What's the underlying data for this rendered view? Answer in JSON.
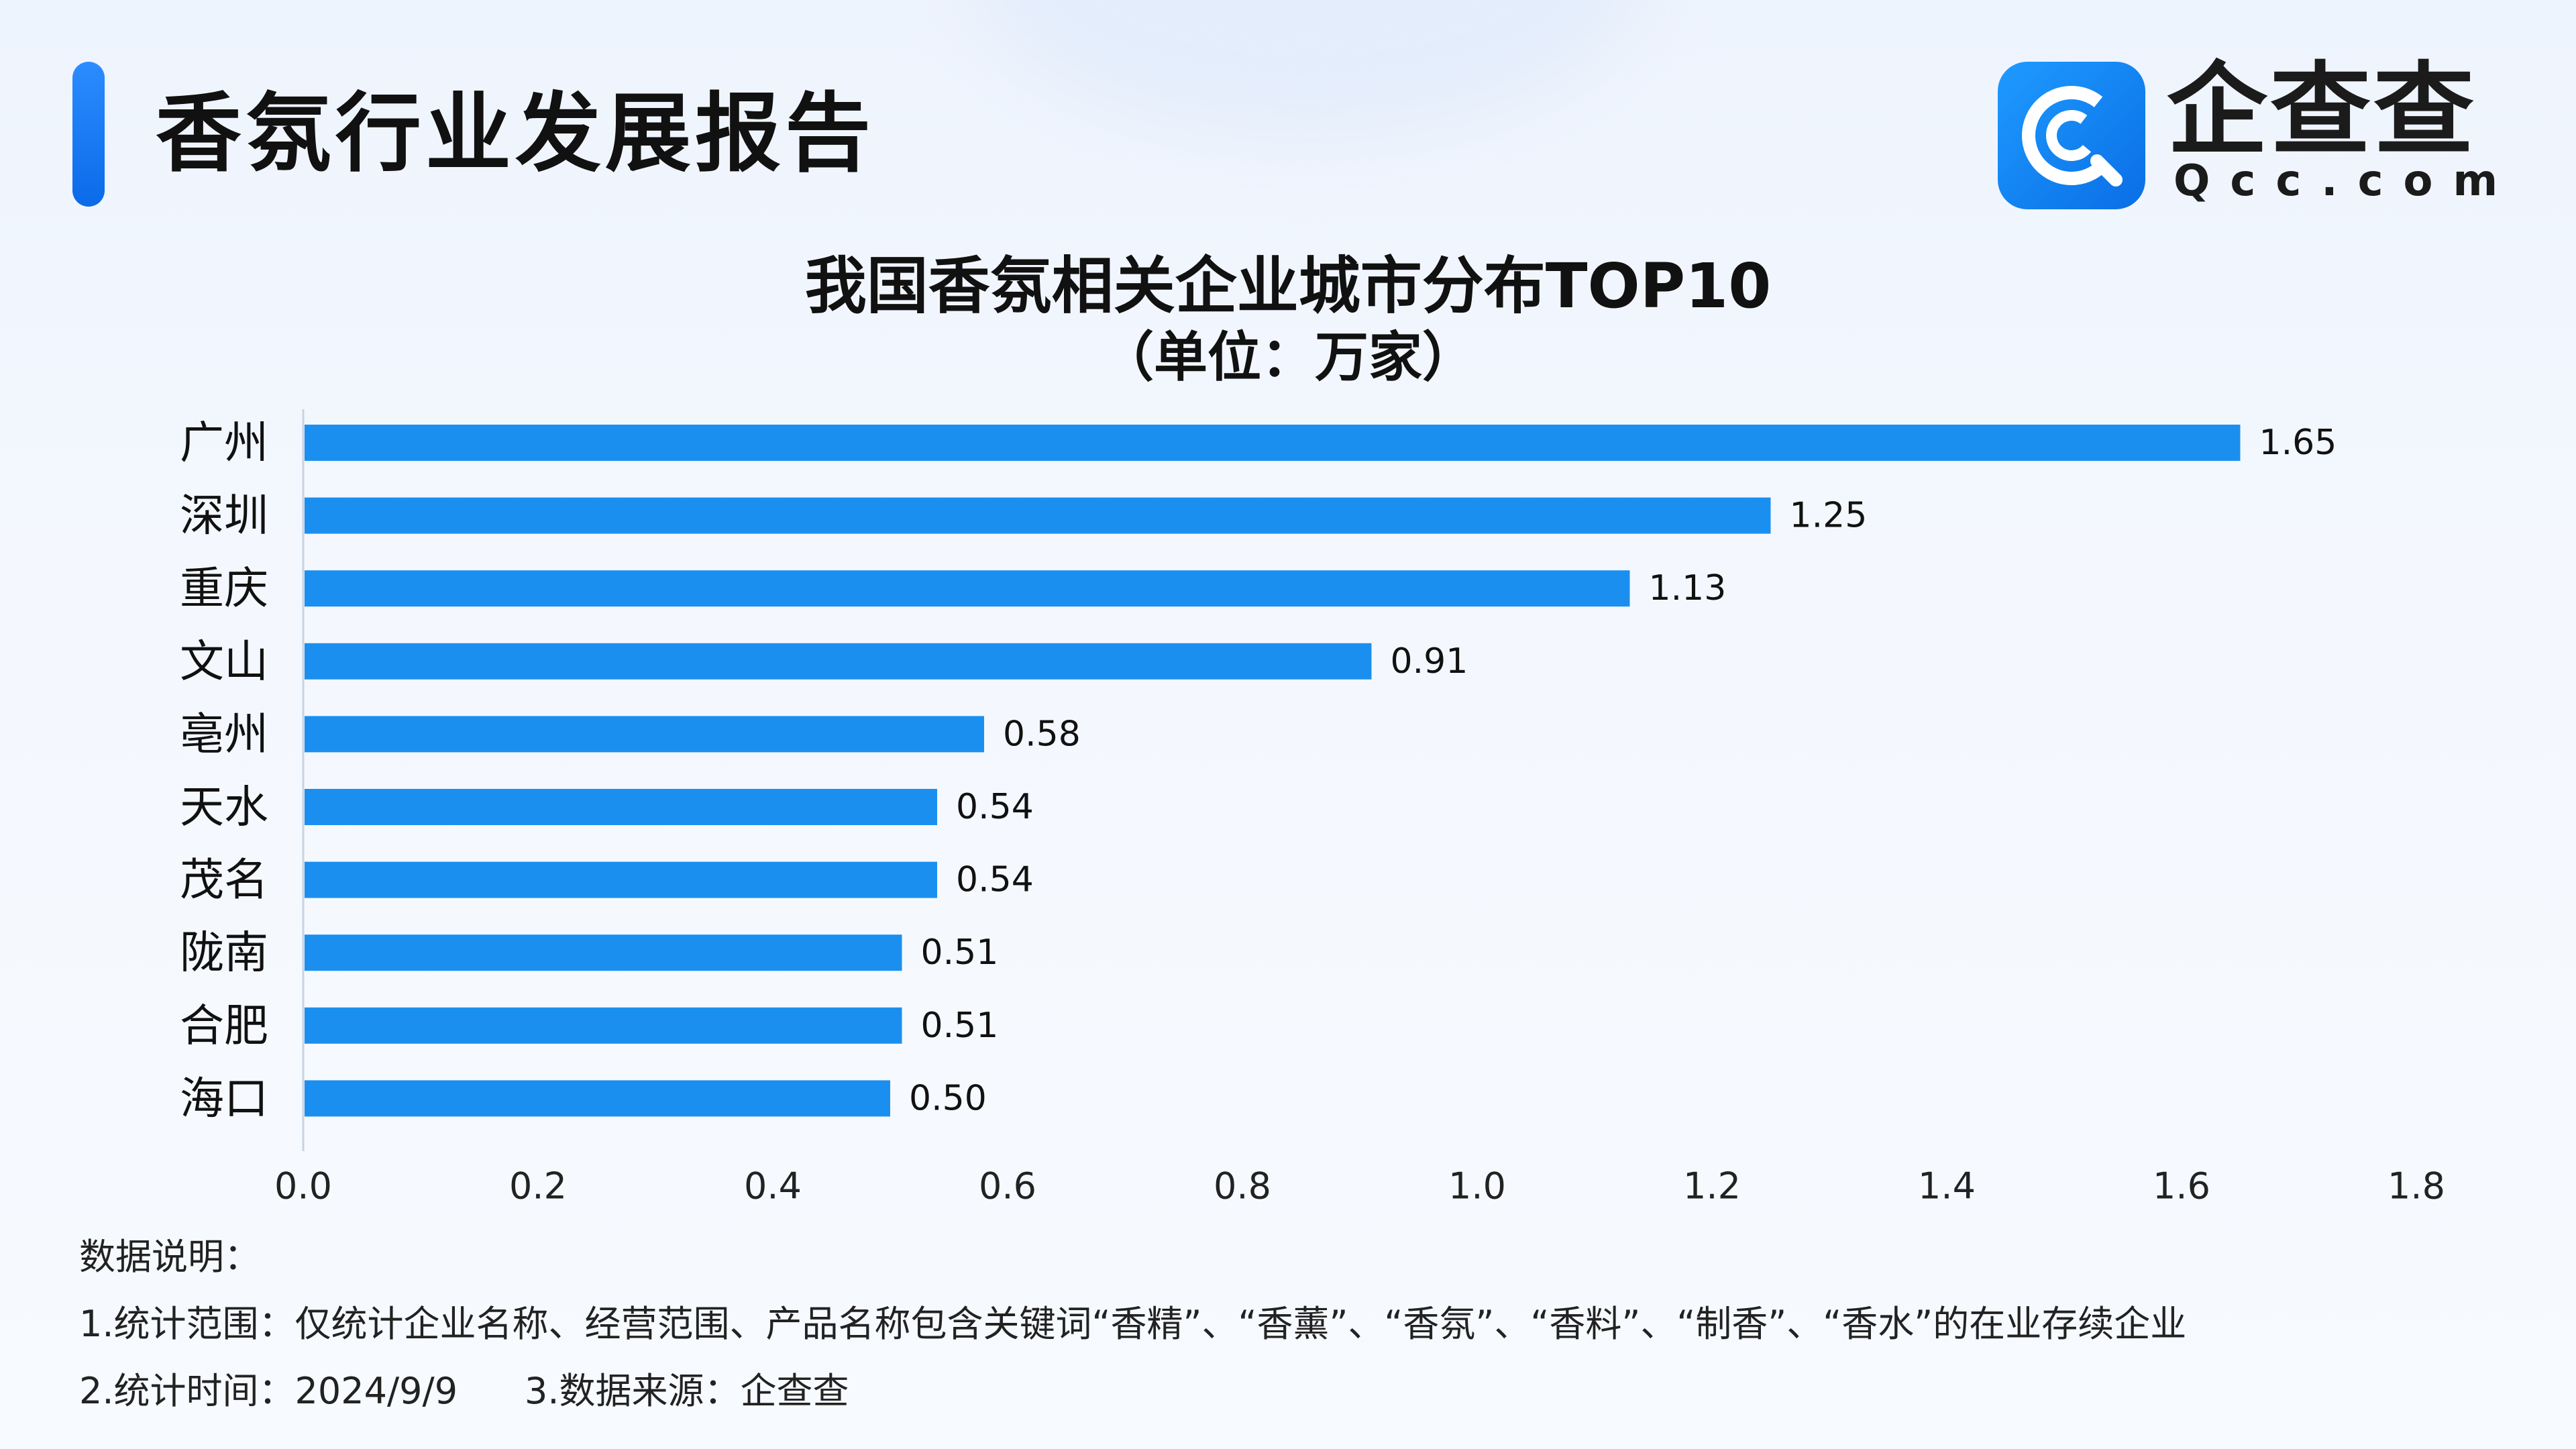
{
  "header": {
    "title": "香氛行业发展报告",
    "logo_cn": "企查查",
    "logo_en": "Qcc.com"
  },
  "chart_data": {
    "type": "bar",
    "orientation": "horizontal",
    "title": "我国香氛相关企业城市分布TOP10",
    "subtitle": "（单位：万家）",
    "categories": [
      "广州",
      "深圳",
      "重庆",
      "文山",
      "亳州",
      "天水",
      "茂名",
      "陇南",
      "合肥",
      "海口"
    ],
    "values": [
      1.65,
      1.25,
      1.13,
      0.91,
      0.58,
      0.54,
      0.54,
      0.51,
      0.51,
      0.5
    ],
    "value_labels": [
      "1.65",
      "1.25",
      "1.13",
      "0.91",
      "0.58",
      "0.54",
      "0.54",
      "0.51",
      "0.51",
      "0.50"
    ],
    "xlim": [
      0,
      1.8
    ],
    "x_ticks": [
      "0.0",
      "0.2",
      "0.4",
      "0.6",
      "0.8",
      "1.0",
      "1.2",
      "1.4",
      "1.6",
      "1.8"
    ],
    "grid": false,
    "bar_color": "#1b8ff0"
  },
  "notes": {
    "heading": "数据说明：",
    "scope": "1.统计范围：仅统计企业名称、经营范围、产品名称包含关键词“香精”、“香薰”、“香氛”、“香料”、“制香”、“香水”的在业存续企业",
    "time": "2.统计时间：2024/9/9",
    "source": "3.数据来源：企查查"
  },
  "colors": {
    "accent": "#1b8ff0",
    "logo_bg": "#1e8ef8",
    "background": "#eef4fd"
  }
}
